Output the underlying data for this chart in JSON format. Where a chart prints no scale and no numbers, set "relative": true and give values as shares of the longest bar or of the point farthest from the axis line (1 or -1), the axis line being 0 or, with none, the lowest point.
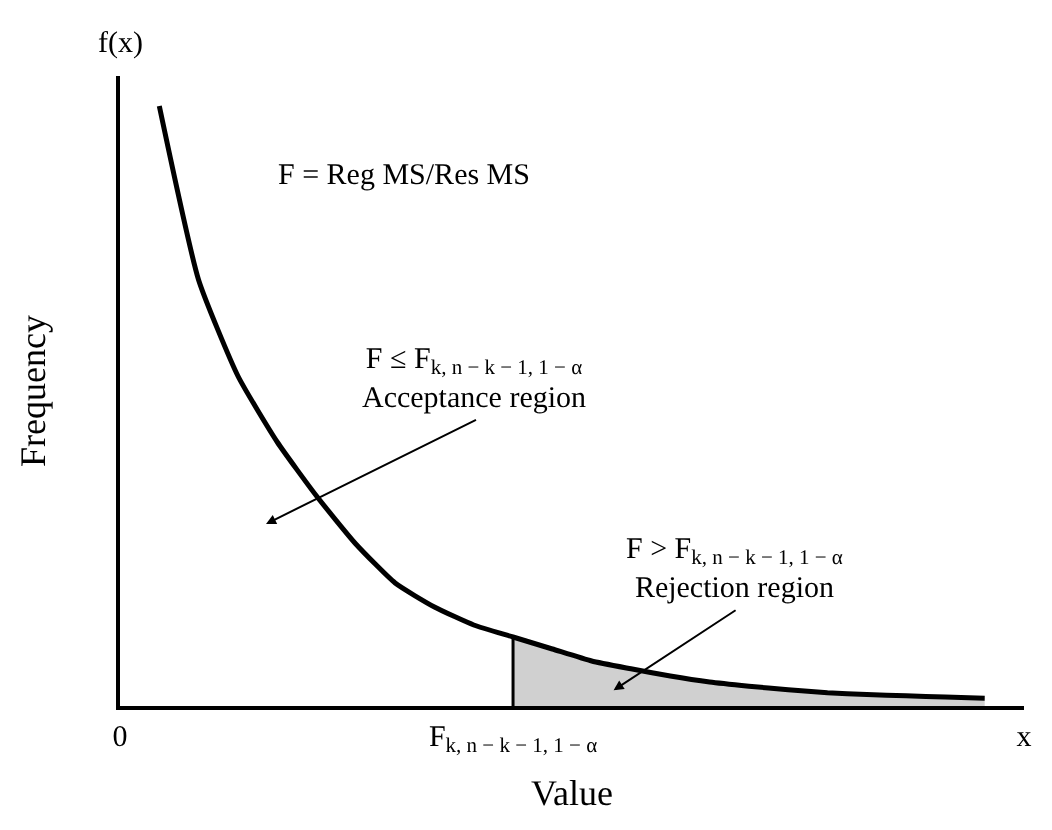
{
  "chart_data": {
    "type": "line",
    "relative": true,
    "xlabel": "Value",
    "ylabel": "Frequency",
    "categories": [
      "0",
      null,
      null,
      null,
      null,
      null,
      null,
      null,
      null,
      null,
      "F$_{k, n − k − 1, 1 − α}$",
      null,
      null,
      null,
      null,
      null,
      null,
      null,
      null,
      null,
      null,
      null,
      null,
      "x"
    ],
    "tick_labels": "x",
    "grid": false,
    "marker": "none",
    "line_style": "solid",
    "series": [
      {
        "type": "area",
        "color": "#d0d0d0",
        "values": [
          null,
          null,
          null,
          null,
          null,
          null,
          null,
          null,
          null,
          null,
          0.115,
          0.095,
          0.075,
          0.062,
          0.05,
          0.04,
          0.033,
          0.027,
          0.022,
          0.019,
          0.017,
          0.015,
          0.013,
          null
        ]
      },
      {
        "color": "#000000",
        "values": [
          null,
          1.0,
          0.71,
          0.55,
          0.44,
          0.35,
          0.27,
          0.205,
          0.165,
          0.135,
          0.115,
          0.095,
          0.075,
          0.062,
          0.05,
          0.04,
          0.033,
          0.027,
          0.022,
          0.019,
          0.017,
          0.015,
          0.013,
          null
        ]
      }
    ],
    "ref_lines": [
      {
        "axis": "x",
        "value": "F$_{k, n − k − 1, 1 − α}$",
        "color": "#000000",
        "line_style": "solid"
      }
    ],
    "annotations": [
      "f(x)",
      "F = Reg MS/Res MS",
      "F ≤ F$_{k, n − k − 1, 1 − α}$\nAcceptance region",
      "F > F$_{k, n − k − 1, 1 − α}$\nRejection region"
    ]
  }
}
